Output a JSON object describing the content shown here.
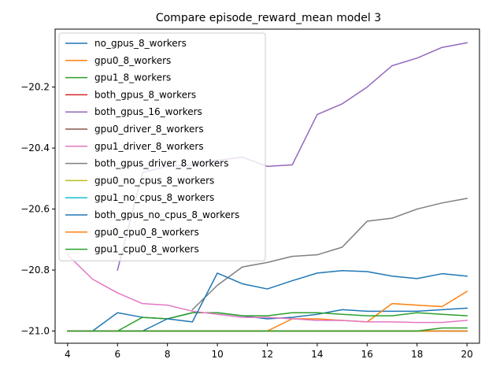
{
  "chart_data": {
    "type": "line",
    "title": "Compare episode_reward_mean model 3",
    "xlabel": "",
    "ylabel": "",
    "xlim": [
      3.5,
      20.5
    ],
    "ylim": [
      -21.04,
      -20.01
    ],
    "xticks": [
      4,
      6,
      8,
      10,
      12,
      14,
      16,
      18,
      20
    ],
    "yticks": [
      -21.0,
      -20.8,
      -20.6,
      -20.4,
      -20.2
    ],
    "ytick_labels": [
      "−21.0",
      "−20.8",
      "−20.6",
      "−20.4",
      "−20.2"
    ],
    "grid": false,
    "legend_position": "upper-left",
    "series": [
      {
        "name": "no_gpus_8_workers",
        "color": "#1f77b4",
        "x": [
          4,
          5,
          6,
          7,
          8,
          9,
          10,
          11,
          12,
          13,
          14,
          15,
          16,
          17,
          18,
          19,
          20
        ],
        "y": [
          -21.0,
          -21.0,
          -20.94,
          -20.955,
          -20.96,
          -20.94,
          -20.94,
          -20.95,
          -20.96,
          -20.955,
          -20.945,
          -20.93,
          -20.935,
          -20.935,
          -20.935,
          -20.93,
          -20.925
        ]
      },
      {
        "name": "gpu0_8_workers",
        "color": "#ff7f0e",
        "x": [
          4,
          5,
          6,
          7,
          8,
          9,
          10,
          11,
          12,
          13,
          14,
          15,
          16,
          17,
          18,
          19,
          20
        ],
        "y": [
          -21.0,
          -21.0,
          -21.0,
          -21.0,
          -21.0,
          -21.0,
          -21.0,
          -21.0,
          -21.0,
          -20.96,
          -20.96,
          -20.965,
          -20.97,
          -20.91,
          -20.915,
          -20.92,
          -20.87
        ]
      },
      {
        "name": "gpu1_8_workers",
        "color": "#2ca02c",
        "x": [
          4,
          5,
          6,
          7,
          8,
          9,
          10,
          11,
          12,
          13,
          14,
          15,
          16,
          17,
          18,
          19,
          20
        ],
        "y": [
          -21.0,
          -21.0,
          -21.0,
          -20.955,
          -20.96,
          -20.94,
          -20.94,
          -20.95,
          -20.95,
          -20.94,
          -20.94,
          -20.945,
          -20.95,
          -20.95,
          -20.94,
          -20.945,
          -20.95
        ]
      },
      {
        "name": "both_gpus_8_workers",
        "color": "#d62728",
        "x": [
          4,
          5,
          6,
          7,
          8,
          9,
          10,
          11,
          12,
          13,
          14,
          15,
          16,
          17,
          18,
          19,
          20
        ],
        "y": [
          -21.0,
          -21.0,
          -21.0,
          -21.0,
          -21.0,
          -21.0,
          -21.0,
          -21.0,
          -21.0,
          -21.0,
          -21.0,
          -21.0,
          -21.0,
          -21.0,
          -21.0,
          -21.0,
          -21.0
        ]
      },
      {
        "name": "both_gpus_16_workers",
        "color": "#9467bd",
        "x": [
          6,
          7,
          8,
          9,
          10,
          11,
          12,
          13,
          14,
          15,
          16,
          17,
          18,
          19,
          20
        ],
        "y": [
          -20.8,
          -20.48,
          -20.46,
          -20.455,
          -20.44,
          -20.43,
          -20.46,
          -20.455,
          -20.29,
          -20.255,
          -20.2,
          -20.13,
          -20.105,
          -20.07,
          -20.055
        ]
      },
      {
        "name": "gpu0_driver_8_workers",
        "color": "#8c564b",
        "x": [
          4,
          5,
          6,
          7,
          8,
          9,
          10,
          11,
          12,
          13,
          14,
          15,
          16,
          17,
          18,
          19,
          20
        ],
        "y": [
          -21.0,
          -21.0,
          -21.0,
          -21.0,
          -21.0,
          -21.0,
          -21.0,
          -21.0,
          -21.0,
          -21.0,
          -21.0,
          -21.0,
          -21.0,
          -21.0,
          -21.0,
          -21.0,
          -21.0
        ]
      },
      {
        "name": "gpu1_driver_8_workers",
        "color": "#e377c2",
        "x": [
          4,
          5,
          6,
          7,
          8,
          9,
          10,
          11,
          12,
          13,
          14,
          15,
          16,
          17,
          18,
          19,
          20
        ],
        "y": [
          -20.75,
          -20.83,
          -20.875,
          -20.91,
          -20.915,
          -20.935,
          -20.945,
          -20.955,
          -20.955,
          -20.96,
          -20.965,
          -20.965,
          -20.97,
          -20.97,
          -20.972,
          -20.972,
          -20.965
        ]
      },
      {
        "name": "both_gpus_driver_8_workers",
        "color": "#7f7f7f",
        "x": [
          9,
          10,
          11,
          12,
          13,
          14,
          15,
          16,
          17,
          18,
          19,
          20
        ],
        "y": [
          -20.93,
          -20.85,
          -20.79,
          -20.775,
          -20.755,
          -20.75,
          -20.725,
          -20.64,
          -20.63,
          -20.6,
          -20.58,
          -20.565
        ]
      },
      {
        "name": "gpu0_no_cpus_8_workers",
        "color": "#bcbd22",
        "x": [
          4,
          5,
          6,
          7,
          8,
          9,
          10,
          11,
          12,
          13,
          14,
          15,
          16,
          17,
          18,
          19,
          20
        ],
        "y": [
          -21.0,
          -21.0,
          -21.0,
          -21.0,
          -21.0,
          -21.0,
          -21.0,
          -21.0,
          -21.0,
          -21.0,
          -21.0,
          -21.0,
          -21.0,
          -21.0,
          -21.0,
          -21.0,
          -21.0
        ]
      },
      {
        "name": "gpu1_no_cpus_8_workers",
        "color": "#17becf",
        "x": [
          4,
          5,
          6,
          7,
          8,
          9,
          10,
          11,
          12,
          13,
          14,
          15,
          16,
          17,
          18,
          19,
          20
        ],
        "y": [
          -21.0,
          -21.0,
          -21.0,
          -21.0,
          -21.0,
          -21.0,
          -21.0,
          -21.0,
          -21.0,
          -21.0,
          -21.0,
          -21.0,
          -21.0,
          -21.0,
          -21.0,
          -21.0,
          -21.0
        ]
      },
      {
        "name": "both_gpus_no_cpus_8_workers",
        "color": "#1f77b4",
        "x": [
          4,
          5,
          6,
          7,
          8,
          9,
          10,
          11,
          12,
          13,
          14,
          15,
          16,
          17,
          18,
          19,
          20
        ],
        "y": [
          -21.0,
          -21.0,
          -21.0,
          -21.0,
          -20.96,
          -20.97,
          -20.81,
          -20.845,
          -20.862,
          -20.835,
          -20.81,
          -20.802,
          -20.805,
          -20.82,
          -20.828,
          -20.812,
          -20.82
        ]
      },
      {
        "name": "gpu0_cpu0_8_workers",
        "color": "#ff7f0e",
        "x": [
          4,
          5,
          6,
          7,
          8,
          9,
          10,
          11,
          12,
          13,
          14,
          15,
          16,
          17,
          18,
          19,
          20
        ],
        "y": [
          -21.0,
          -21.0,
          -21.0,
          -21.0,
          -21.0,
          -21.0,
          -21.0,
          -21.0,
          -21.0,
          -21.0,
          -21.0,
          -21.0,
          -21.0,
          -21.0,
          -21.0,
          -21.0,
          -21.0
        ]
      },
      {
        "name": "gpu1_cpu0_8_workers",
        "color": "#2ca02c",
        "x": [
          4,
          5,
          6,
          7,
          8,
          9,
          10,
          11,
          12,
          13,
          14,
          15,
          16,
          17,
          18,
          19,
          20
        ],
        "y": [
          -21.0,
          -21.0,
          -21.0,
          -21.0,
          -21.0,
          -21.0,
          -21.0,
          -21.0,
          -21.0,
          -21.0,
          -21.0,
          -21.0,
          -21.0,
          -21.0,
          -21.0,
          -20.99,
          -20.99
        ]
      }
    ]
  }
}
